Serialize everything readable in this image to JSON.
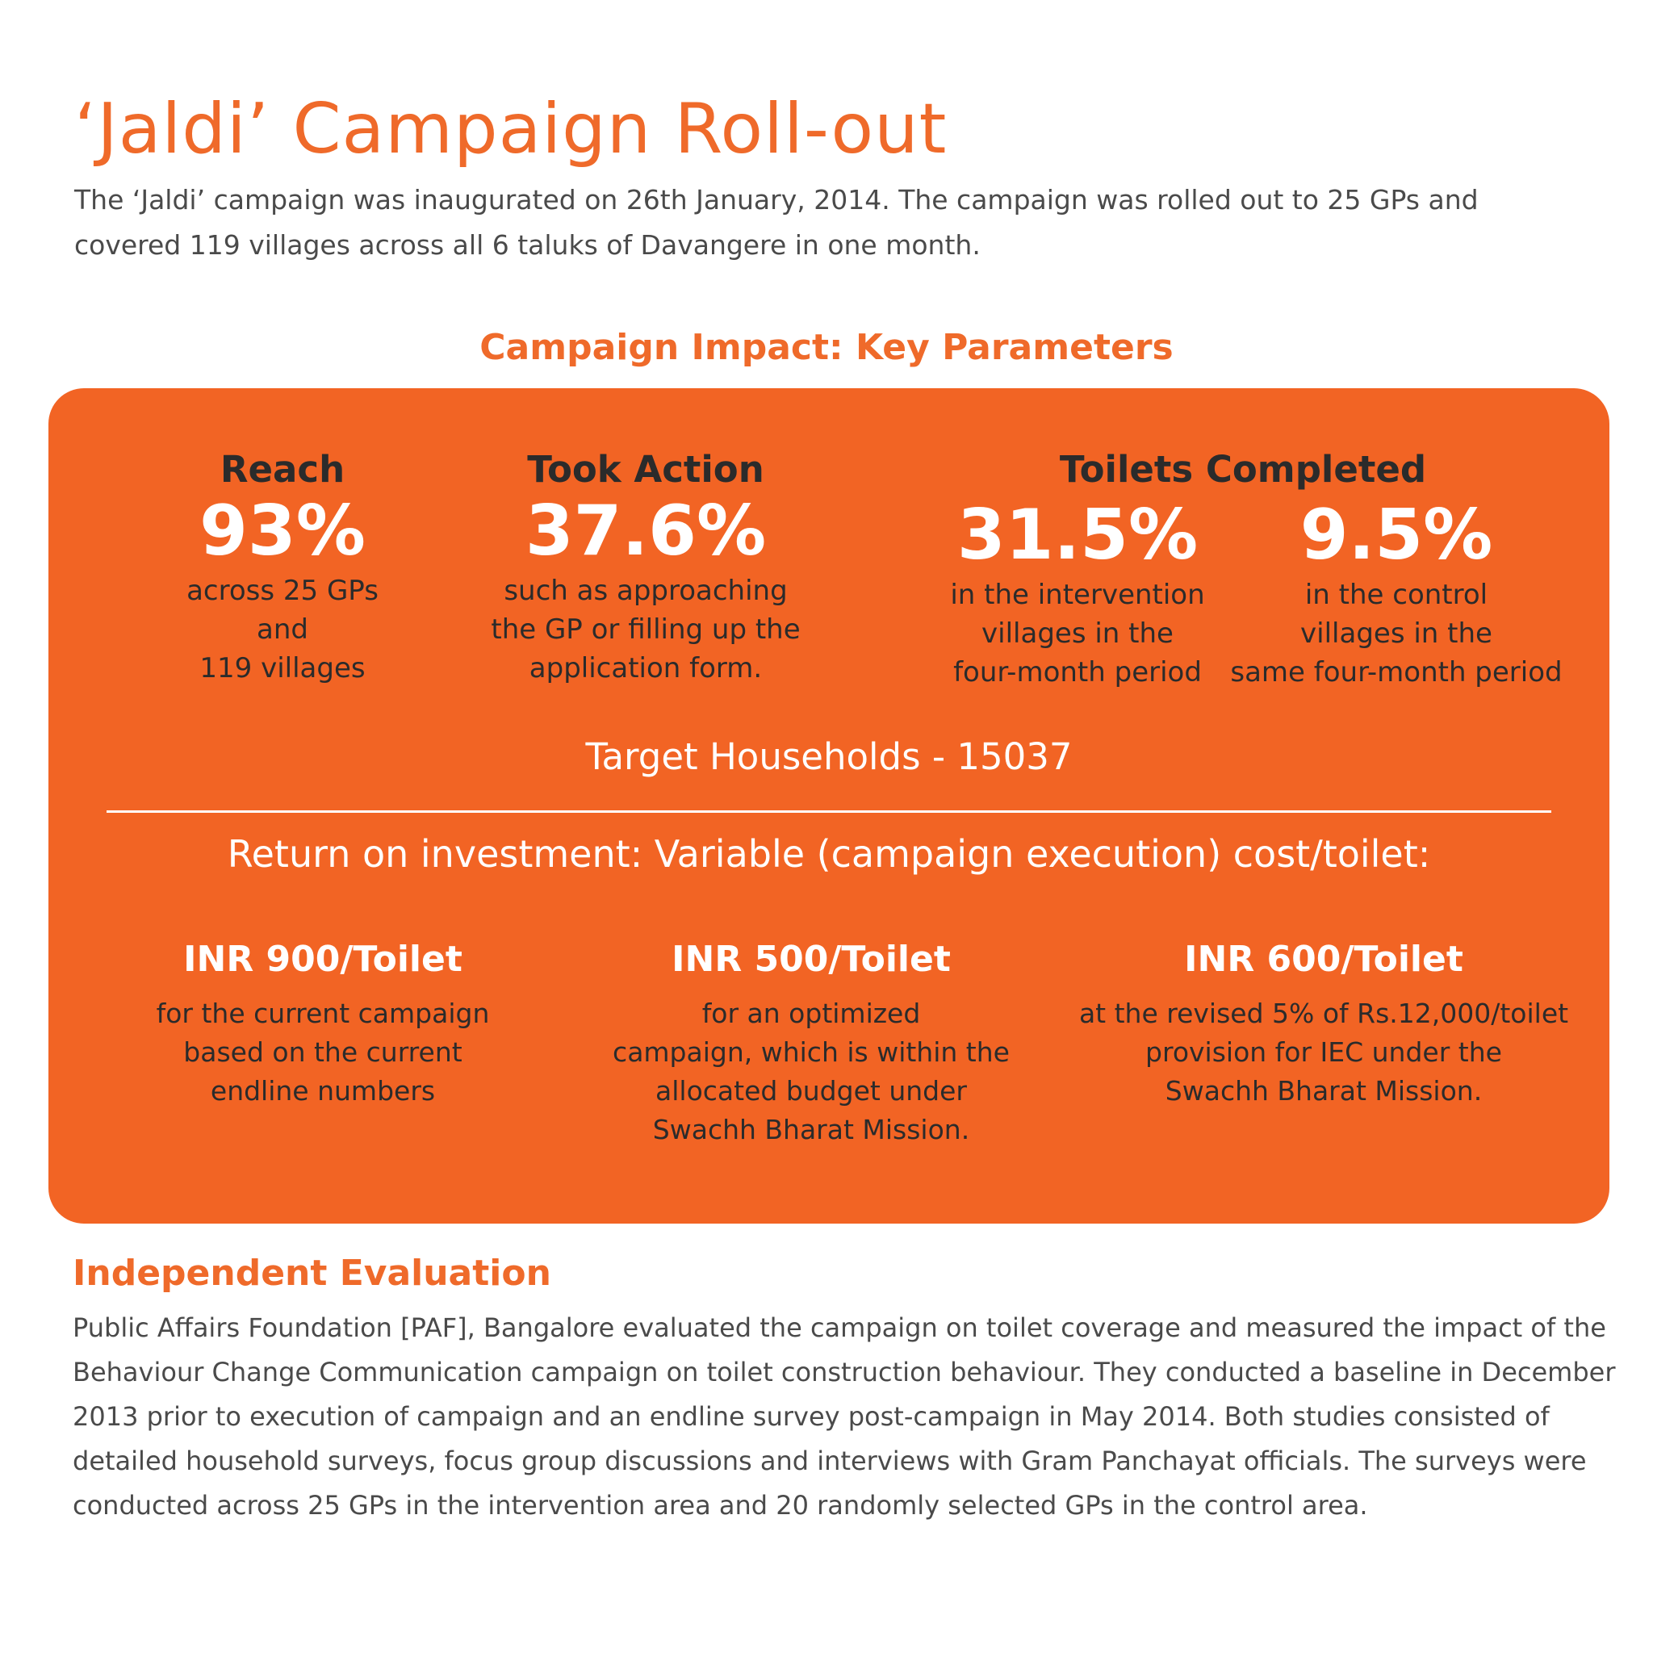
{
  "header": {
    "title": "‘Jaldi’ Campaign Roll-out",
    "intro": "The ‘Jaldi’ campaign was inaugurated on 26th January, 2014. The campaign was rolled out to 25 GPs and covered 119 villages across all 6 taluks of Davangere in one month."
  },
  "impact": {
    "subtitle": "Campaign Impact: Key Parameters",
    "reach": {
      "label": "Reach",
      "value": "93%",
      "desc": [
        "across 25 GPs",
        "and",
        "119 villages"
      ]
    },
    "took_action": {
      "label": "Took Action",
      "value": "37.6%",
      "desc": [
        "such as approaching",
        "the GP or filling up the",
        "application form."
      ]
    },
    "toilets": {
      "label": "Toilets Completed",
      "intervention": {
        "value": "31.5%",
        "desc": [
          "in the intervention",
          "villages  in the",
          "four-month period"
        ]
      },
      "control": {
        "value": "9.5%",
        "desc": [
          "in the control",
          "villages in the",
          "same four-month period"
        ]
      }
    },
    "target_households": "Target Households - 15037",
    "roi_title": "Return on investment: Variable (campaign execution) cost/toilet:",
    "costs": [
      {
        "label": "INR 900/Toilet",
        "desc": [
          "for the current campaign",
          "based on the current",
          "endline numbers"
        ]
      },
      {
        "label": "INR 500/Toilet",
        "desc": [
          "for an optimized",
          "campaign, which is within the",
          "allocated budget under",
          "Swachh Bharat Mission."
        ]
      },
      {
        "label": "INR 600/Toilet",
        "desc": [
          "at the revised 5% of Rs.12,000/toilet",
          "provision for IEC under the",
          "Swachh Bharat Mission."
        ]
      }
    ]
  },
  "evaluation": {
    "title": "Independent Evaluation",
    "text": "Public Affairs Foundation [PAF], Bangalore evaluated the campaign on toilet coverage and measured the impact of the Behaviour Change Communication campaign on toilet construction behaviour. They conducted a baseline in December 2013 prior to execution of campaign and an endline survey post-campaign in May 2014. Both studies consisted of detailed household surveys, focus group discussions and interviews with Gram Panchayat officials. The surveys were conducted across 25 GPs in the intervention area and 20 randomly selected GPs in the control area."
  },
  "colors": {
    "accent": "#ef6a2a",
    "panel": "#f26424",
    "text": "#4a4a4a"
  }
}
